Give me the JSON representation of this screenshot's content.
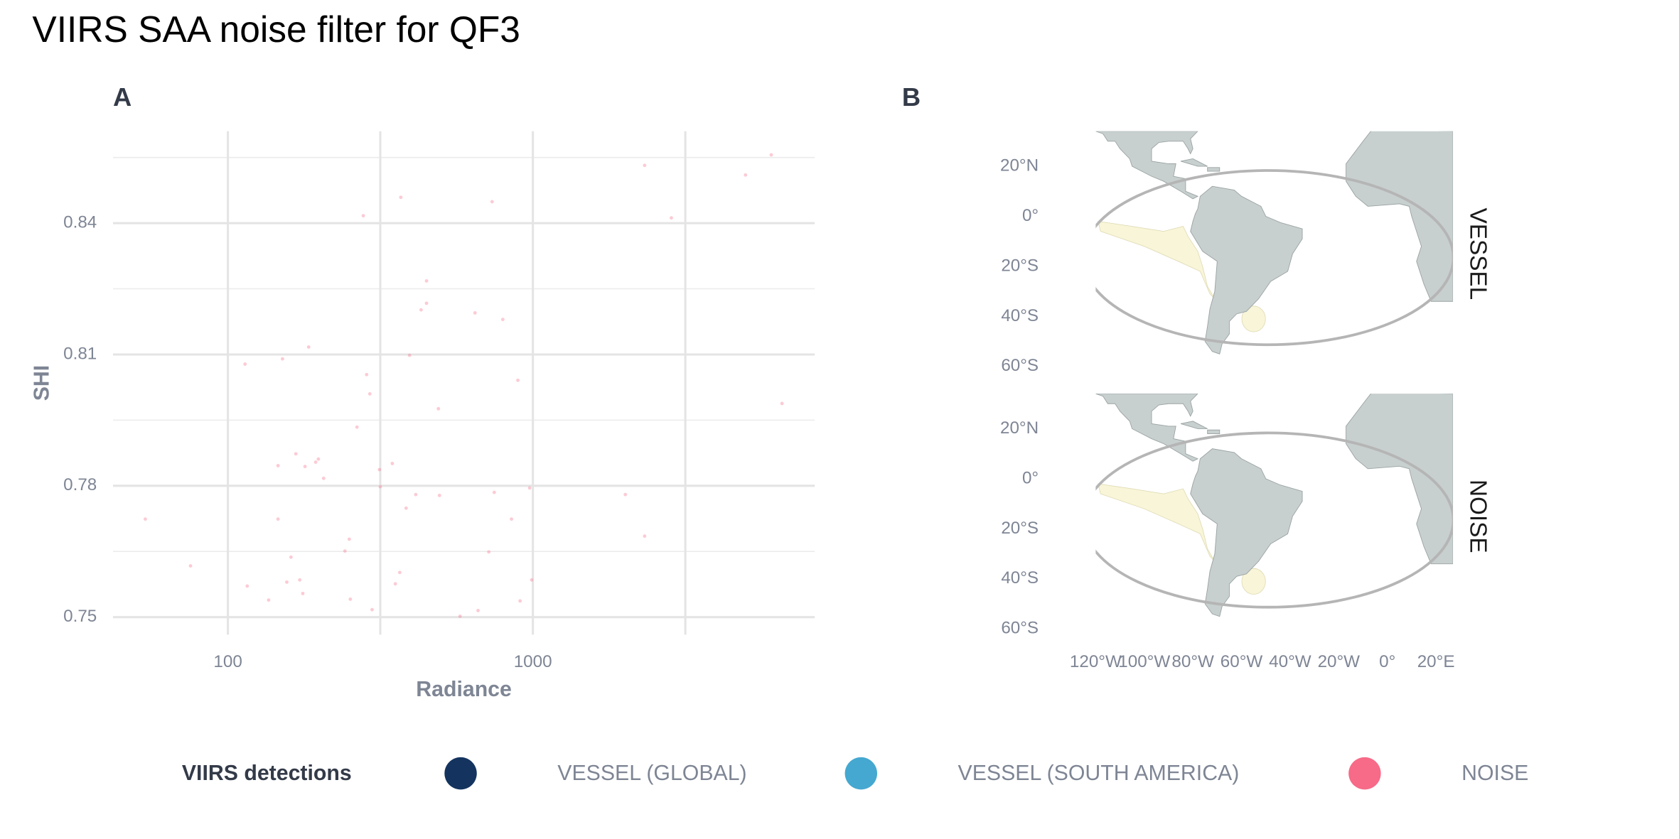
{
  "title": "VIIRS SAA noise filter for QF3",
  "chart_data": [
    {
      "type": "scatter",
      "label": "A",
      "x_label": "Radiance",
      "y_label": "SHI",
      "color": "#f76a88",
      "x": [
        53.6,
        75.4,
        113.8,
        115.7,
        136,
        146,
        151,
        146,
        156,
        161,
        167,
        172,
        176,
        179,
        184,
        194,
        198,
        206,
        242,
        250,
        252,
        265,
        278,
        285,
        292,
        297,
        314,
        316,
        346,
        354,
        366,
        369,
        384,
        394,
        413,
        430,
        448,
        448,
        490,
        494,
        577,
        646,
        661,
        717,
        735,
        747,
        797,
        851,
        893,
        908,
        976,
        991,
        2010,
        2325,
        2325,
        2845,
        4980,
        6050,
        6560
      ],
      "y": [
        0.7724,
        0.7617,
        0.8078,
        0.7571,
        0.7539,
        0.7724,
        0.809,
        0.7846,
        0.758,
        0.7637,
        0.7873,
        0.7585,
        0.7554,
        0.7844,
        0.8117,
        0.7854,
        0.7861,
        0.7817,
        0.7651,
        0.7678,
        0.7541,
        0.7934,
        0.8417,
        0.8054,
        0.801,
        0.7517,
        0.7837,
        0.7798,
        0.7851,
        0.7576,
        0.7602,
        0.8459,
        0.7749,
        0.8098,
        0.778,
        0.8202,
        0.8268,
        0.8217,
        0.7976,
        0.7778,
        0.7502,
        0.8195,
        0.7515,
        0.7649,
        0.8449,
        0.7785,
        0.818,
        0.7724,
        0.8041,
        0.7537,
        0.7795,
        0.7585,
        0.778,
        0.8532,
        0.7685,
        0.8412,
        0.851,
        0.8556,
        0.7988
      ],
      "xlog": true,
      "xlim": [
        42,
        8400
      ],
      "ylim": [
        0.746,
        0.861
      ],
      "xticks": [
        100,
        1000
      ],
      "yticks": [
        0.75,
        0.78,
        0.81,
        0.84
      ],
      "xminor": [
        316,
        3162
      ],
      "yminor": [
        0.765,
        0.795,
        0.825,
        0.855
      ],
      "grid": true
    },
    {
      "type": "map",
      "label": "B",
      "facets": [
        "VESSEL",
        "NOISE"
      ],
      "xlim": [
        -120,
        27
      ],
      "ylim": [
        -64,
        34
      ],
      "xticks": [
        {
          "value": -120,
          "label": "120°W"
        },
        {
          "value": -100,
          "label": "100°W"
        },
        {
          "value": -80,
          "label": "80°W"
        },
        {
          "value": -60,
          "label": "60°W"
        },
        {
          "value": -40,
          "label": "40°W"
        },
        {
          "value": -20,
          "label": "20°W"
        },
        {
          "value": 0,
          "label": "0°"
        },
        {
          "value": 20,
          "label": "20°E"
        }
      ],
      "yticks": [
        {
          "value": 20,
          "label": "20°N"
        },
        {
          "value": 0,
          "label": "0°"
        },
        {
          "value": -20,
          "label": "20°S"
        },
        {
          "value": -40,
          "label": "40°S"
        },
        {
          "value": -60,
          "label": "60°S"
        }
      ]
    }
  ],
  "legend": {
    "title": "VIIRS detections",
    "entries": [
      {
        "name": "VESSEL (GLOBAL)",
        "color": "#14345f"
      },
      {
        "name": "VESSEL (SOUTH AMERICA)",
        "color": "#45a8d0"
      },
      {
        "name": "NOISE",
        "color": "#f76a88"
      }
    ]
  }
}
